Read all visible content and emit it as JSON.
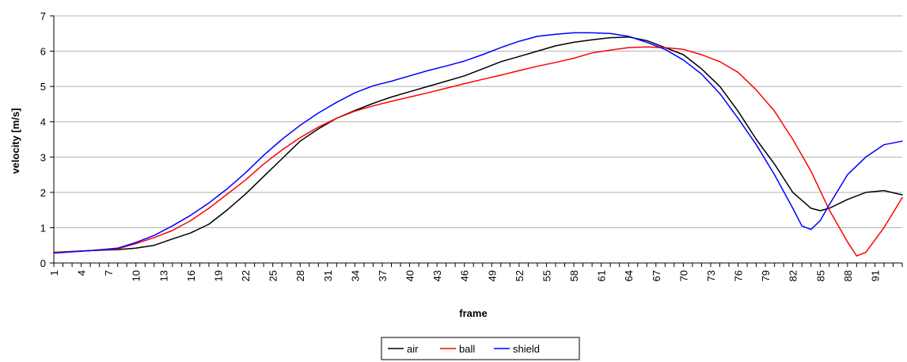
{
  "chart_data": {
    "type": "line",
    "xlabel": "frame",
    "ylabel": "velocity [m/s]",
    "ylim": [
      0,
      7
    ],
    "yticks": [
      0,
      1,
      2,
      3,
      4,
      5,
      6,
      7
    ],
    "xlim": [
      1,
      94
    ],
    "xtick_labels": [
      "1",
      "4",
      "7",
      "10",
      "13",
      "16",
      "19",
      "22",
      "25",
      "28",
      "31",
      "34",
      "37",
      "40",
      "43",
      "46",
      "49",
      "52",
      "55",
      "58",
      "61",
      "64",
      "67",
      "70",
      "73",
      "76",
      "79",
      "82",
      "85",
      "88",
      "91"
    ],
    "grid": "horizontal",
    "legend_position": "bottom",
    "series": [
      {
        "name": "air",
        "color": "#000000",
        "points": [
          [
            1,
            0.3
          ],
          [
            5,
            0.35
          ],
          [
            8,
            0.38
          ],
          [
            10,
            0.42
          ],
          [
            12,
            0.5
          ],
          [
            14,
            0.68
          ],
          [
            16,
            0.85
          ],
          [
            18,
            1.1
          ],
          [
            20,
            1.5
          ],
          [
            22,
            1.95
          ],
          [
            24,
            2.45
          ],
          [
            26,
            2.95
          ],
          [
            28,
            3.45
          ],
          [
            30,
            3.8
          ],
          [
            32,
            4.1
          ],
          [
            34,
            4.32
          ],
          [
            36,
            4.52
          ],
          [
            38,
            4.7
          ],
          [
            40,
            4.85
          ],
          [
            42,
            5.0
          ],
          [
            44,
            5.15
          ],
          [
            46,
            5.3
          ],
          [
            48,
            5.5
          ],
          [
            50,
            5.7
          ],
          [
            52,
            5.85
          ],
          [
            54,
            6.0
          ],
          [
            56,
            6.15
          ],
          [
            58,
            6.25
          ],
          [
            60,
            6.32
          ],
          [
            62,
            6.38
          ],
          [
            64,
            6.4
          ],
          [
            66,
            6.3
          ],
          [
            68,
            6.1
          ],
          [
            70,
            5.9
          ],
          [
            72,
            5.5
          ],
          [
            74,
            5.0
          ],
          [
            76,
            4.3
          ],
          [
            78,
            3.5
          ],
          [
            80,
            2.8
          ],
          [
            82,
            2.0
          ],
          [
            84,
            1.55
          ],
          [
            85,
            1.48
          ],
          [
            86,
            1.55
          ],
          [
            88,
            1.8
          ],
          [
            90,
            2.0
          ],
          [
            92,
            2.05
          ],
          [
            94,
            1.93
          ]
        ]
      },
      {
        "name": "ball",
        "color": "#ff0000",
        "points": [
          [
            1,
            0.3
          ],
          [
            5,
            0.35
          ],
          [
            8,
            0.4
          ],
          [
            10,
            0.55
          ],
          [
            12,
            0.72
          ],
          [
            14,
            0.92
          ],
          [
            16,
            1.2
          ],
          [
            18,
            1.55
          ],
          [
            20,
            1.95
          ],
          [
            22,
            2.35
          ],
          [
            24,
            2.8
          ],
          [
            26,
            3.2
          ],
          [
            28,
            3.55
          ],
          [
            30,
            3.85
          ],
          [
            32,
            4.1
          ],
          [
            34,
            4.3
          ],
          [
            36,
            4.45
          ],
          [
            38,
            4.58
          ],
          [
            40,
            4.7
          ],
          [
            42,
            4.82
          ],
          [
            44,
            4.95
          ],
          [
            46,
            5.08
          ],
          [
            48,
            5.2
          ],
          [
            50,
            5.32
          ],
          [
            52,
            5.45
          ],
          [
            54,
            5.57
          ],
          [
            56,
            5.68
          ],
          [
            58,
            5.8
          ],
          [
            60,
            5.95
          ],
          [
            62,
            6.03
          ],
          [
            64,
            6.1
          ],
          [
            66,
            6.12
          ],
          [
            68,
            6.1
          ],
          [
            70,
            6.05
          ],
          [
            72,
            5.9
          ],
          [
            74,
            5.7
          ],
          [
            76,
            5.4
          ],
          [
            78,
            4.9
          ],
          [
            80,
            4.3
          ],
          [
            82,
            3.5
          ],
          [
            84,
            2.6
          ],
          [
            86,
            1.5
          ],
          [
            88,
            0.6
          ],
          [
            89,
            0.2
          ],
          [
            90,
            0.3
          ],
          [
            92,
            1.0
          ],
          [
            94,
            1.85
          ]
        ]
      },
      {
        "name": "shield",
        "color": "#0000ff",
        "points": [
          [
            1,
            0.28
          ],
          [
            5,
            0.35
          ],
          [
            8,
            0.42
          ],
          [
            10,
            0.58
          ],
          [
            12,
            0.78
          ],
          [
            14,
            1.05
          ],
          [
            16,
            1.35
          ],
          [
            18,
            1.7
          ],
          [
            20,
            2.1
          ],
          [
            22,
            2.55
          ],
          [
            24,
            3.05
          ],
          [
            26,
            3.5
          ],
          [
            28,
            3.9
          ],
          [
            30,
            4.25
          ],
          [
            32,
            4.55
          ],
          [
            34,
            4.82
          ],
          [
            36,
            5.02
          ],
          [
            38,
            5.15
          ],
          [
            40,
            5.3
          ],
          [
            42,
            5.45
          ],
          [
            44,
            5.58
          ],
          [
            46,
            5.72
          ],
          [
            48,
            5.9
          ],
          [
            50,
            6.1
          ],
          [
            52,
            6.28
          ],
          [
            54,
            6.42
          ],
          [
            56,
            6.48
          ],
          [
            58,
            6.52
          ],
          [
            60,
            6.52
          ],
          [
            62,
            6.5
          ],
          [
            64,
            6.42
          ],
          [
            66,
            6.25
          ],
          [
            68,
            6.05
          ],
          [
            70,
            5.75
          ],
          [
            72,
            5.35
          ],
          [
            74,
            4.8
          ],
          [
            76,
            4.1
          ],
          [
            78,
            3.35
          ],
          [
            80,
            2.5
          ],
          [
            82,
            1.55
          ],
          [
            83,
            1.05
          ],
          [
            84,
            0.95
          ],
          [
            85,
            1.2
          ],
          [
            86,
            1.65
          ],
          [
            88,
            2.5
          ],
          [
            90,
            3.0
          ],
          [
            92,
            3.35
          ],
          [
            94,
            3.45
          ]
        ]
      }
    ]
  }
}
